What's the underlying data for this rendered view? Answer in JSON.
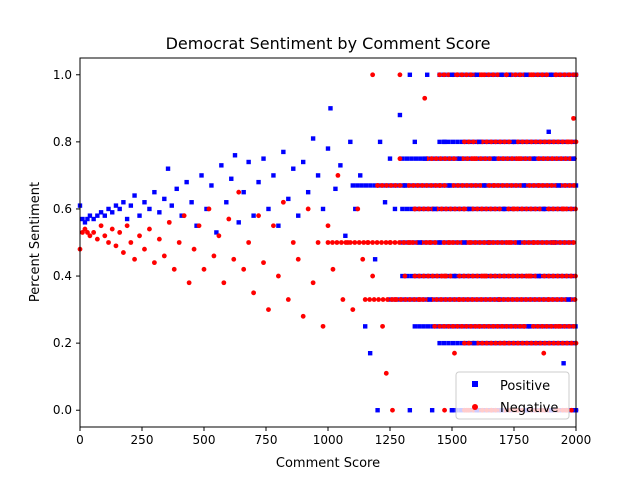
{
  "chart_data": {
    "type": "scatter",
    "title": "Democrat Sentiment by Comment Score",
    "xlabel": "Comment Score",
    "ylabel": "Percent Sentiment",
    "xlim": [
      0,
      2000
    ],
    "ylim": [
      -0.05,
      1.05
    ],
    "xticks": [
      0,
      250,
      500,
      750,
      1000,
      1250,
      1500,
      1750,
      2000
    ],
    "yticks": [
      0.0,
      0.2,
      0.4,
      0.6,
      0.8,
      1.0
    ],
    "xtick_labels": [
      "0",
      "250",
      "500",
      "750",
      "1000",
      "1250",
      "1500",
      "1750",
      "2000"
    ],
    "ytick_labels": [
      "0.0",
      "0.2",
      "0.4",
      "0.6",
      "0.8",
      "1.0"
    ],
    "grid": false,
    "legend_position": "lower-right",
    "series": [
      {
        "name": "Positive",
        "color": "#0000ff",
        "marker": "square",
        "points": [
          [
            0,
            0.61
          ],
          [
            10,
            0.57
          ],
          [
            20,
            0.56
          ],
          [
            30,
            0.57
          ],
          [
            40,
            0.58
          ],
          [
            55,
            0.57
          ],
          [
            70,
            0.58
          ],
          [
            85,
            0.59
          ],
          [
            100,
            0.58
          ],
          [
            115,
            0.6
          ],
          [
            130,
            0.59
          ],
          [
            145,
            0.61
          ],
          [
            160,
            0.6
          ],
          [
            175,
            0.62
          ],
          [
            190,
            0.57
          ],
          [
            205,
            0.61
          ],
          [
            220,
            0.64
          ],
          [
            240,
            0.58
          ],
          [
            260,
            0.62
          ],
          [
            280,
            0.6
          ],
          [
            300,
            0.65
          ],
          [
            320,
            0.59
          ],
          [
            340,
            0.63
          ],
          [
            355,
            0.72
          ],
          [
            370,
            0.61
          ],
          [
            390,
            0.66
          ],
          [
            410,
            0.58
          ],
          [
            430,
            0.68
          ],
          [
            450,
            0.62
          ],
          [
            470,
            0.55
          ],
          [
            490,
            0.7
          ],
          [
            510,
            0.6
          ],
          [
            530,
            0.67
          ],
          [
            550,
            0.53
          ],
          [
            570,
            0.73
          ],
          [
            590,
            0.62
          ],
          [
            610,
            0.69
          ],
          [
            625,
            0.76
          ],
          [
            640,
            0.56
          ],
          [
            660,
            0.65
          ],
          [
            680,
            0.74
          ],
          [
            700,
            0.58
          ],
          [
            720,
            0.68
          ],
          [
            740,
            0.75
          ],
          [
            760,
            0.6
          ],
          [
            780,
            0.7
          ],
          [
            800,
            0.55
          ],
          [
            820,
            0.77
          ],
          [
            840,
            0.63
          ],
          [
            860,
            0.72
          ],
          [
            880,
            0.58
          ],
          [
            900,
            0.74
          ],
          [
            920,
            0.65
          ],
          [
            940,
            0.81
          ],
          [
            960,
            0.7
          ],
          [
            980,
            0.6
          ],
          [
            1000,
            0.78
          ],
          [
            1010,
            0.9
          ],
          [
            1030,
            0.66
          ],
          [
            1050,
            0.73
          ],
          [
            1070,
            0.52
          ],
          [
            1090,
            0.8
          ],
          [
            1110,
            0.6
          ],
          [
            1130,
            0.7
          ],
          [
            1150,
            0.25
          ],
          [
            1170,
            0.17
          ],
          [
            1190,
            0.45
          ],
          [
            1210,
            0.8
          ],
          [
            1230,
            0.62
          ],
          [
            1250,
            0.75
          ],
          [
            1270,
            0.6
          ],
          [
            1290,
            0.88
          ],
          [
            1310,
            0.67
          ],
          [
            1330,
            1.0
          ],
          [
            1350,
            0.8
          ],
          [
            1370,
            0.5
          ],
          [
            1390,
            0.75
          ],
          [
            1410,
            0.33
          ],
          [
            1430,
            0.6
          ],
          [
            1450,
            0.5
          ],
          [
            1470,
            0.8
          ],
          [
            1490,
            0.67
          ],
          [
            1510,
            0.4
          ],
          [
            1530,
            0.75
          ],
          [
            1550,
            0.5
          ],
          [
            1570,
            0.6
          ],
          [
            1590,
            0.2
          ],
          [
            1610,
            0.8
          ],
          [
            1630,
            0.67
          ],
          [
            1650,
            0.5
          ],
          [
            1670,
            0.75
          ],
          [
            1690,
            0.33
          ],
          [
            1710,
            0.6
          ],
          [
            1730,
            1.0
          ],
          [
            1750,
            0.8
          ],
          [
            1770,
            0.5
          ],
          [
            1790,
            0.67
          ],
          [
            1810,
            0.25
          ],
          [
            1830,
            0.75
          ],
          [
            1850,
            0.4
          ],
          [
            1870,
            0.6
          ],
          [
            1890,
            0.83
          ],
          [
            1910,
            0.5
          ],
          [
            1930,
            0.67
          ],
          [
            1950,
            0.14
          ],
          [
            1970,
            0.33
          ],
          [
            1990,
            0.75
          ],
          [
            1200,
            0.0
          ],
          [
            1330,
            0.0
          ],
          [
            1420,
            0.0
          ],
          [
            1500,
            0.0
          ],
          [
            1600,
            0.0
          ],
          [
            1700,
            0.0
          ],
          [
            1800,
            0.0
          ],
          [
            1900,
            0.0
          ],
          [
            2000,
            0.0
          ],
          [
            1400,
            1.0
          ],
          [
            1500,
            1.0
          ],
          [
            1600,
            1.0
          ],
          [
            1700,
            1.0
          ],
          [
            1800,
            1.0
          ],
          [
            1900,
            1.0
          ],
          [
            2000,
            1.0
          ]
        ]
      },
      {
        "name": "Negative",
        "color": "#ff0000",
        "marker": "circle",
        "points": [
          [
            0,
            0.48
          ],
          [
            10,
            0.53
          ],
          [
            20,
            0.54
          ],
          [
            30,
            0.53
          ],
          [
            40,
            0.52
          ],
          [
            55,
            0.53
          ],
          [
            70,
            0.51
          ],
          [
            85,
            0.55
          ],
          [
            100,
            0.52
          ],
          [
            115,
            0.5
          ],
          [
            130,
            0.54
          ],
          [
            145,
            0.49
          ],
          [
            160,
            0.53
          ],
          [
            175,
            0.47
          ],
          [
            190,
            0.55
          ],
          [
            205,
            0.5
          ],
          [
            220,
            0.45
          ],
          [
            240,
            0.52
          ],
          [
            260,
            0.48
          ],
          [
            280,
            0.54
          ],
          [
            300,
            0.44
          ],
          [
            320,
            0.51
          ],
          [
            340,
            0.46
          ],
          [
            360,
            0.56
          ],
          [
            380,
            0.42
          ],
          [
            400,
            0.5
          ],
          [
            420,
            0.58
          ],
          [
            440,
            0.38
          ],
          [
            460,
            0.48
          ],
          [
            480,
            0.55
          ],
          [
            500,
            0.42
          ],
          [
            520,
            0.6
          ],
          [
            540,
            0.46
          ],
          [
            560,
            0.52
          ],
          [
            580,
            0.38
          ],
          [
            600,
            0.57
          ],
          [
            620,
            0.45
          ],
          [
            640,
            0.65
          ],
          [
            660,
            0.42
          ],
          [
            680,
            0.5
          ],
          [
            700,
            0.35
          ],
          [
            720,
            0.58
          ],
          [
            740,
            0.44
          ],
          [
            760,
            0.3
          ],
          [
            780,
            0.55
          ],
          [
            800,
            0.4
          ],
          [
            820,
            0.62
          ],
          [
            840,
            0.33
          ],
          [
            860,
            0.5
          ],
          [
            880,
            0.45
          ],
          [
            900,
            0.28
          ],
          [
            920,
            0.6
          ],
          [
            940,
            0.38
          ],
          [
            960,
            0.5
          ],
          [
            980,
            0.25
          ],
          [
            1000,
            0.55
          ],
          [
            1020,
            0.42
          ],
          [
            1040,
            0.7
          ],
          [
            1060,
            0.33
          ],
          [
            1080,
            0.5
          ],
          [
            1100,
            0.3
          ],
          [
            1120,
            0.6
          ],
          [
            1140,
            0.45
          ],
          [
            1160,
            0.5
          ],
          [
            1180,
            0.4
          ],
          [
            1200,
            0.67
          ],
          [
            1220,
            0.25
          ],
          [
            1235,
            0.11
          ],
          [
            1250,
            0.5
          ],
          [
            1270,
            0.33
          ],
          [
            1290,
            0.75
          ],
          [
            1310,
            0.4
          ],
          [
            1330,
            0.5
          ],
          [
            1350,
            0.6
          ],
          [
            1370,
            0.33
          ],
          [
            1390,
            0.93
          ],
          [
            1410,
            0.5
          ],
          [
            1430,
            0.25
          ],
          [
            1450,
            0.67
          ],
          [
            1470,
            0.4
          ],
          [
            1490,
            0.5
          ],
          [
            1510,
            0.17
          ],
          [
            1530,
            0.33
          ],
          [
            1550,
            0.6
          ],
          [
            1570,
            0.5
          ],
          [
            1590,
            0.75
          ],
          [
            1610,
            0.25
          ],
          [
            1630,
            0.4
          ],
          [
            1650,
            0.5
          ],
          [
            1670,
            0.67
          ],
          [
            1690,
            0.33
          ],
          [
            1710,
            0.2
          ],
          [
            1730,
            0.5
          ],
          [
            1750,
            0.6
          ],
          [
            1770,
            0.75
          ],
          [
            1790,
            0.25
          ],
          [
            1810,
            0.4
          ],
          [
            1830,
            0.5
          ],
          [
            1850,
            0.67
          ],
          [
            1870,
            0.17
          ],
          [
            1890,
            0.33
          ],
          [
            1910,
            0.5
          ],
          [
            1930,
            0.25
          ],
          [
            1950,
            0.6
          ],
          [
            1970,
            0.8
          ],
          [
            1990,
            0.87
          ],
          [
            1180,
            1.0
          ],
          [
            1290,
            1.0
          ],
          [
            1520,
            1.0
          ],
          [
            1620,
            1.0
          ],
          [
            1720,
            1.0
          ],
          [
            1820,
            1.0
          ],
          [
            1920,
            1.0
          ],
          [
            2000,
            1.0
          ],
          [
            1260,
            0.0
          ],
          [
            1470,
            0.0
          ],
          [
            1560,
            0.0
          ],
          [
            1660,
            0.0
          ],
          [
            1760,
            0.0
          ],
          [
            1860,
            0.0
          ],
          [
            1960,
            0.0
          ]
        ]
      }
    ],
    "dense_bands": [
      {
        "series": "Positive",
        "y": 0.5,
        "x_range": [
          1300,
          2000
        ]
      },
      {
        "series": "Negative",
        "y": 0.5,
        "x_range": [
          1000,
          2000
        ]
      },
      {
        "series": "Positive",
        "y": 0.67,
        "x_range": [
          1100,
          2000
        ]
      },
      {
        "series": "Negative",
        "y": 0.67,
        "x_range": [
          1200,
          2000
        ]
      },
      {
        "series": "Positive",
        "y": 0.33,
        "x_range": [
          1250,
          2000
        ]
      },
      {
        "series": "Negative",
        "y": 0.33,
        "x_range": [
          1150,
          2000
        ]
      },
      {
        "series": "Positive",
        "y": 0.75,
        "x_range": [
          1300,
          2000
        ]
      },
      {
        "series": "Negative",
        "y": 0.75,
        "x_range": [
          1400,
          2000
        ]
      },
      {
        "series": "Positive",
        "y": 0.25,
        "x_range": [
          1350,
          2000
        ]
      },
      {
        "series": "Negative",
        "y": 0.25,
        "x_range": [
          1450,
          2000
        ]
      },
      {
        "series": "Positive",
        "y": 0.6,
        "x_range": [
          1300,
          2000
        ]
      },
      {
        "series": "Negative",
        "y": 0.6,
        "x_range": [
          1350,
          2000
        ]
      },
      {
        "series": "Positive",
        "y": 0.4,
        "x_range": [
          1300,
          2000
        ]
      },
      {
        "series": "Negative",
        "y": 0.4,
        "x_range": [
          1350,
          2000
        ]
      },
      {
        "series": "Positive",
        "y": 0.8,
        "x_range": [
          1450,
          2000
        ]
      },
      {
        "series": "Negative",
        "y": 0.8,
        "x_range": [
          1550,
          2000
        ]
      },
      {
        "series": "Positive",
        "y": 0.2,
        "x_range": [
          1450,
          2000
        ]
      },
      {
        "series": "Negative",
        "y": 0.2,
        "x_range": [
          1550,
          2000
        ]
      },
      {
        "series": "Positive",
        "y": 1.0,
        "x_range": [
          1450,
          2000
        ]
      },
      {
        "series": "Negative",
        "y": 1.0,
        "x_range": [
          1450,
          2000
        ]
      },
      {
        "series": "Positive",
        "y": 0.0,
        "x_range": [
          1500,
          2000
        ]
      },
      {
        "series": "Negative",
        "y": 0.0,
        "x_range": [
          1550,
          2000
        ]
      }
    ]
  }
}
